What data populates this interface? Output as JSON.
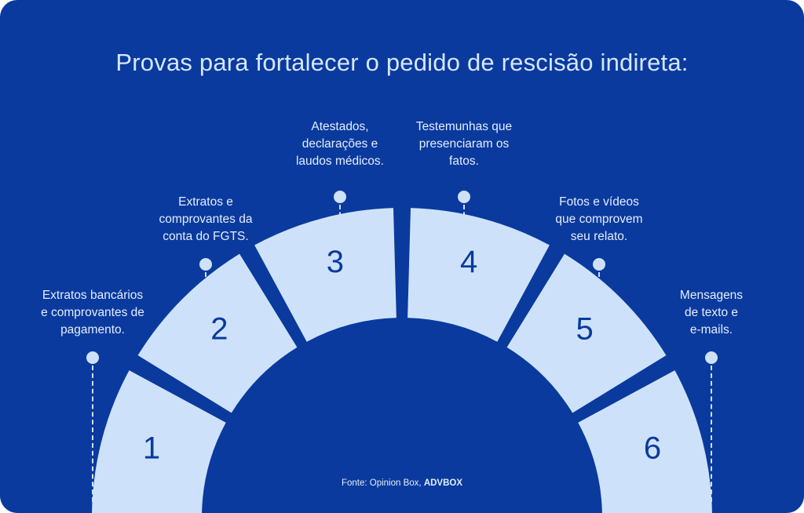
{
  "title": "Provas para fortalecer o pedido de rescisão indireta:",
  "colors": {
    "background": "#0a3a9e",
    "segment": "#cde2fa",
    "number": "#0a3a9e",
    "text": "#e4eefc"
  },
  "steps": [
    {
      "number": "1",
      "lines": [
        "Extratos bancários",
        "e comprovantes de",
        "pagamento."
      ]
    },
    {
      "number": "2",
      "lines": [
        "Extratos e",
        "comprovantes da",
        "conta do FGTS."
      ]
    },
    {
      "number": "3",
      "lines": [
        "Atestados,",
        "declarações e",
        "laudos médicos."
      ]
    },
    {
      "number": "4",
      "lines": [
        "Testemunhas que",
        "presenciaram os",
        "fatos."
      ]
    },
    {
      "number": "5",
      "lines": [
        "Fotos e vídeos",
        "que comprovem",
        "seu relato."
      ]
    },
    {
      "number": "6",
      "lines": [
        "Mensagens",
        "de texto e",
        "e-mails."
      ]
    }
  ],
  "source": {
    "prefix": "Fonte: Opinion Box, ",
    "brand": "ADVBOX"
  }
}
